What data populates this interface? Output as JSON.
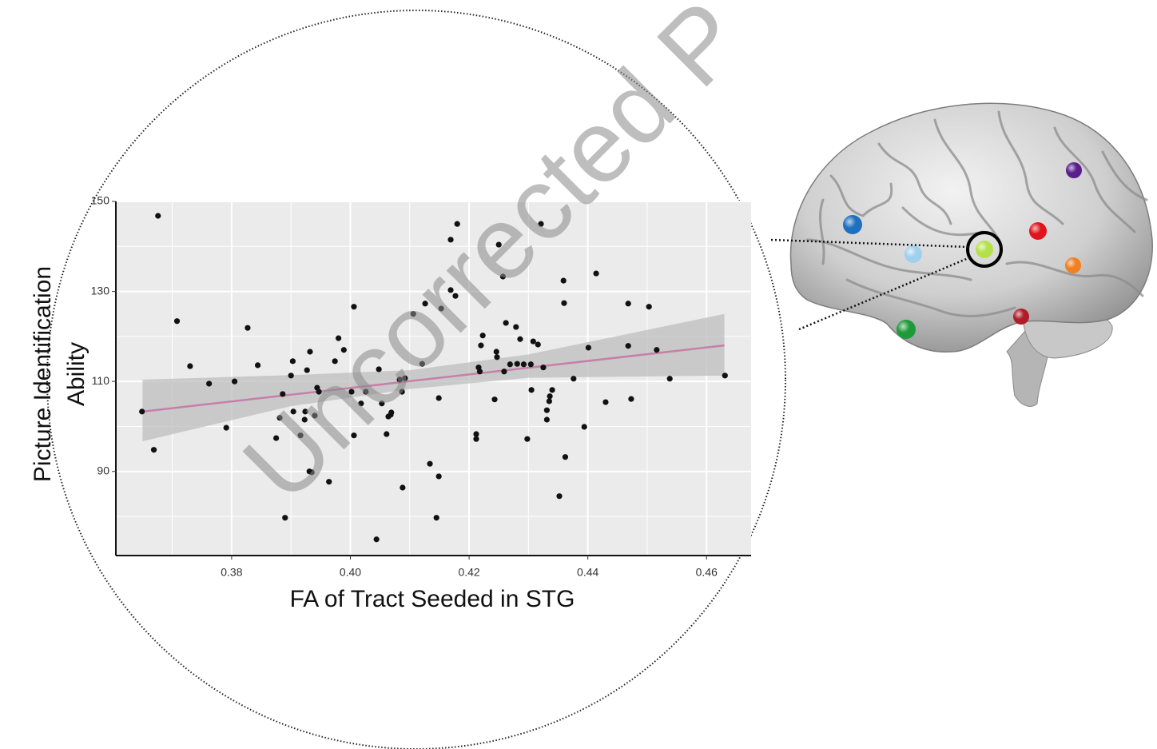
{
  "chart_data": {
    "type": "scatter",
    "xlabel": "FA of Tract Seeded in STG",
    "ylabel": [
      "Picture Identification",
      "Ability"
    ],
    "x": [
      0.3649,
      0.3669,
      0.3676,
      0.3708,
      0.373,
      0.3762,
      0.3791,
      0.3805,
      0.3827,
      0.3844,
      0.3875,
      0.3881,
      0.3886,
      0.389,
      0.39,
      0.3903,
      0.3904,
      0.3916,
      0.3923,
      0.3924,
      0.3927,
      0.3931,
      0.3932,
      0.3935,
      0.394,
      0.3944,
      0.3947,
      0.3964,
      0.3974,
      0.398,
      0.3989,
      0.4002,
      0.4006,
      0.4006,
      0.4018,
      0.4026,
      0.4044,
      0.4048,
      0.4053,
      0.4061,
      0.4064,
      0.4068,
      0.4069,
      0.4083,
      0.4087,
      0.4088,
      0.4092,
      0.4106,
      0.4121,
      0.4126,
      0.4134,
      0.4145,
      0.4149,
      0.4149,
      0.4153,
      0.4169,
      0.4169,
      0.4177,
      0.418,
      0.4212,
      0.4212,
      0.4216,
      0.4218,
      0.422,
      0.4223,
      0.4243,
      0.4246,
      0.4247,
      0.425,
      0.4257,
      0.4259,
      0.4262,
      0.4269,
      0.4279,
      0.4281,
      0.4286,
      0.4292,
      0.4298,
      0.4304,
      0.4305,
      0.4308,
      0.4316,
      0.4321,
      0.4325,
      0.4331,
      0.4331,
      0.4335,
      0.4336,
      0.434,
      0.4352,
      0.4359,
      0.436,
      0.4362,
      0.4376,
      0.4394,
      0.4401,
      0.4414,
      0.443,
      0.4468,
      0.4468,
      0.4473,
      0.4503,
      0.4516,
      0.4538,
      0.4631
    ],
    "values": [
      103.3,
      94.8,
      146.8,
      123.4,
      113.4,
      109.5,
      99.7,
      110.0,
      121.9,
      113.6,
      97.4,
      101.9,
      107.2,
      79.7,
      111.3,
      114.5,
      103.3,
      98.0,
      101.5,
      103.3,
      112.5,
      90.0,
      116.6,
      89.8,
      102.4,
      108.6,
      107.7,
      87.7,
      114.5,
      119.6,
      117.0,
      107.7,
      126.6,
      98.0,
      105.1,
      107.7,
      74.9,
      112.7,
      105.1,
      98.3,
      102.2,
      102.6,
      103.1,
      110.4,
      107.7,
      86.4,
      110.7,
      125.0,
      113.9,
      127.3,
      91.7,
      79.7,
      88.9,
      106.3,
      126.2,
      141.5,
      130.3,
      129.0,
      145.0,
      98.3,
      97.2,
      113.1,
      112.2,
      118.0,
      120.2,
      106.0,
      116.6,
      115.4,
      140.4,
      133.3,
      112.2,
      123.0,
      113.8,
      122.1,
      113.9,
      119.4,
      113.8,
      97.2,
      113.8,
      108.1,
      118.9,
      118.2,
      145.0,
      113.1,
      101.5,
      103.6,
      105.6,
      106.7,
      108.1,
      84.5,
      132.4,
      127.4,
      93.2,
      110.6,
      99.9,
      117.5,
      134.0,
      105.4,
      127.3,
      117.9,
      106.1,
      126.6,
      117.0,
      110.6,
      111.3
    ],
    "color": "#111111",
    "fit": {
      "x": [
        0.365,
        0.463
      ],
      "y": [
        103.3,
        118.0
      ],
      "color": "#c77fa9"
    },
    "band": {
      "x": [
        0.365,
        0.39,
        0.41,
        0.43,
        0.463
      ],
      "lower": [
        96.7,
        104.5,
        108.3,
        110.8,
        111.3
      ],
      "upper": [
        110.4,
        111.4,
        112.5,
        116.0,
        125.0
      ],
      "color": "#bdbdbd"
    },
    "xlim": [
      0.3605,
      0.4675
    ],
    "ylim": [
      71.3,
      150
    ],
    "xticks": [
      0.38,
      {
        "value": 0.4,
        "label": "0.40"
      },
      0.42,
      0.44,
      0.46
    ],
    "yticks": [
      90,
      110,
      130,
      150
    ],
    "grid": true
  },
  "watermark": "Uncorrected P"
}
